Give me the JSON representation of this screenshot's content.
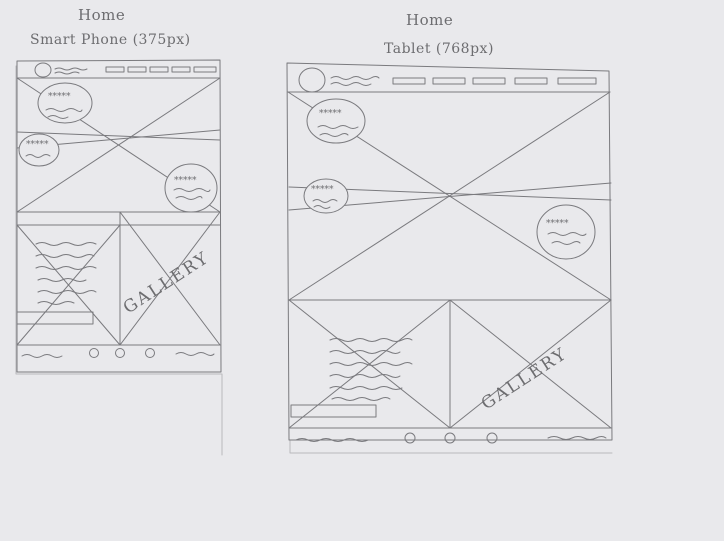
{
  "phone": {
    "title": "Home",
    "subtitle": "Smart Phone (375px)",
    "rating": "*****",
    "gallery": "GALLERY"
  },
  "tablet": {
    "title": "Home",
    "subtitle": "Tablet (768px)",
    "rating": "*****",
    "gallery": "GALLERY"
  },
  "colors": {
    "paper": "#e9e9ec",
    "pencil": "#7a7a7e"
  }
}
